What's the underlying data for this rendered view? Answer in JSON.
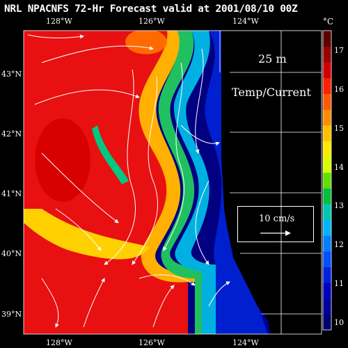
{
  "title": "NRL NPACNFS 72-Hr Forecast valid at 2001/08/10 00Z",
  "depth_label": "25 m",
  "field_label": "Temp/Current",
  "scale_label": "10 cm/s",
  "colorbar": {
    "unit": "°C",
    "ticks": [
      "17",
      "16",
      "15",
      "14",
      "13",
      "12",
      "11",
      "10"
    ],
    "colors": [
      "#5a0000",
      "#9b0000",
      "#d40000",
      "#ff2000",
      "#ff5a00",
      "#ff8c00",
      "#ffc000",
      "#ffe800",
      "#d8ff00",
      "#60e000",
      "#00c040",
      "#00c8b0",
      "#00b4ff",
      "#0080ff",
      "#0050ff",
      "#0020e0",
      "#0000c0",
      "#00009a",
      "#000070"
    ]
  },
  "lon_top": [
    "128°W",
    "126°W",
    "124°W"
  ],
  "lon_bottom": [
    "128°W",
    "126°W",
    "124°W"
  ],
  "lat_labels": [
    "43°N",
    "42°N",
    "41°N",
    "40°N",
    "39°N"
  ]
}
